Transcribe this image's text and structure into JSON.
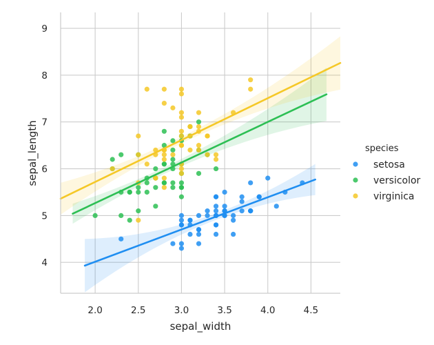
{
  "chart_data": {
    "type": "scatter",
    "xlabel": "sepal_width",
    "ylabel": "sepal_length",
    "xlim": [
      1.6,
      4.84
    ],
    "ylim": [
      3.34,
      9.34
    ],
    "xticks": [
      2.0,
      2.5,
      3.0,
      3.5,
      4.0,
      4.5
    ],
    "xtick_labels": [
      "2.0",
      "2.5",
      "3.0",
      "3.5",
      "4.0",
      "4.5"
    ],
    "yticks": [
      4,
      5,
      6,
      7,
      8,
      9
    ],
    "ytick_labels": [
      "4",
      "5",
      "6",
      "7",
      "8",
      "9"
    ],
    "grid": true,
    "legend": {
      "title": "species",
      "placement": "right"
    },
    "series": [
      {
        "name": "setosa",
        "color": "#1f8ef1",
        "points": [
          [
            3.5,
            5.1
          ],
          [
            3.0,
            4.9
          ],
          [
            3.2,
            4.7
          ],
          [
            3.1,
            4.6
          ],
          [
            3.6,
            5.0
          ],
          [
            3.9,
            5.4
          ],
          [
            3.4,
            4.6
          ],
          [
            3.4,
            5.0
          ],
          [
            2.9,
            4.4
          ],
          [
            3.1,
            4.9
          ],
          [
            3.7,
            5.4
          ],
          [
            3.4,
            4.8
          ],
          [
            3.0,
            4.8
          ],
          [
            3.0,
            4.3
          ],
          [
            4.0,
            5.8
          ],
          [
            4.4,
            5.7
          ],
          [
            3.9,
            5.4
          ],
          [
            3.5,
            5.1
          ],
          [
            3.8,
            5.7
          ],
          [
            3.8,
            5.1
          ],
          [
            3.4,
            5.4
          ],
          [
            3.7,
            5.1
          ],
          [
            3.6,
            4.6
          ],
          [
            3.3,
            5.1
          ],
          [
            3.4,
            4.8
          ],
          [
            3.0,
            5.0
          ],
          [
            3.4,
            5.0
          ],
          [
            3.5,
            5.2
          ],
          [
            3.4,
            5.2
          ],
          [
            3.2,
            4.7
          ],
          [
            3.1,
            4.8
          ],
          [
            3.4,
            5.4
          ],
          [
            4.1,
            5.2
          ],
          [
            4.2,
            5.5
          ],
          [
            3.1,
            4.9
          ],
          [
            3.2,
            5.0
          ],
          [
            3.5,
            5.5
          ],
          [
            3.6,
            4.9
          ],
          [
            3.0,
            4.4
          ],
          [
            3.4,
            5.1
          ],
          [
            3.5,
            5.0
          ],
          [
            2.3,
            4.5
          ],
          [
            3.2,
            4.4
          ],
          [
            3.5,
            5.0
          ],
          [
            3.8,
            5.1
          ],
          [
            3.0,
            4.8
          ],
          [
            3.8,
            5.1
          ],
          [
            3.2,
            4.6
          ],
          [
            3.7,
            5.3
          ],
          [
            3.3,
            5.0
          ]
        ],
        "fit": {
          "x": [
            1.88,
            4.55
          ],
          "y": [
            3.93,
            5.77
          ]
        }
      },
      {
        "name": "versicolor",
        "color": "#2dbf54",
        "points": [
          [
            3.2,
            7.0
          ],
          [
            3.2,
            6.4
          ],
          [
            3.1,
            6.9
          ],
          [
            2.3,
            5.5
          ],
          [
            2.8,
            6.5
          ],
          [
            2.8,
            5.7
          ],
          [
            3.3,
            6.3
          ],
          [
            2.4,
            4.9
          ],
          [
            2.9,
            6.6
          ],
          [
            2.7,
            5.2
          ],
          [
            2.0,
            5.0
          ],
          [
            3.0,
            5.9
          ],
          [
            2.2,
            6.0
          ],
          [
            2.9,
            6.1
          ],
          [
            2.9,
            5.6
          ],
          [
            3.1,
            6.7
          ],
          [
            3.0,
            5.6
          ],
          [
            2.7,
            5.8
          ],
          [
            2.2,
            6.2
          ],
          [
            2.5,
            5.6
          ],
          [
            3.2,
            5.9
          ],
          [
            2.8,
            6.1
          ],
          [
            2.5,
            6.3
          ],
          [
            2.8,
            6.1
          ],
          [
            2.9,
            6.4
          ],
          [
            3.0,
            6.6
          ],
          [
            2.8,
            6.8
          ],
          [
            3.0,
            6.7
          ],
          [
            2.9,
            6.0
          ],
          [
            2.6,
            5.7
          ],
          [
            2.4,
            5.5
          ],
          [
            2.4,
            5.5
          ],
          [
            2.7,
            5.8
          ],
          [
            2.7,
            6.0
          ],
          [
            3.0,
            5.4
          ],
          [
            3.4,
            6.0
          ],
          [
            3.1,
            6.7
          ],
          [
            2.3,
            6.3
          ],
          [
            3.0,
            5.6
          ],
          [
            2.5,
            5.5
          ],
          [
            2.6,
            5.5
          ],
          [
            3.0,
            6.1
          ],
          [
            2.6,
            5.8
          ],
          [
            2.3,
            5.0
          ],
          [
            2.7,
            5.6
          ],
          [
            3.0,
            5.7
          ],
          [
            2.9,
            5.7
          ],
          [
            2.9,
            6.2
          ],
          [
            2.5,
            5.1
          ],
          [
            2.8,
            5.7
          ]
        ],
        "fit": {
          "x": [
            1.74,
            4.68
          ],
          "y": [
            5.04,
            7.59
          ]
        }
      },
      {
        "name": "virginica",
        "color": "#f5c827",
        "points": [
          [
            3.3,
            6.3
          ],
          [
            2.7,
            5.8
          ],
          [
            3.0,
            7.1
          ],
          [
            2.9,
            6.3
          ],
          [
            3.0,
            6.5
          ],
          [
            3.0,
            7.6
          ],
          [
            2.5,
            4.9
          ],
          [
            2.9,
            7.3
          ],
          [
            2.5,
            6.7
          ],
          [
            3.6,
            7.2
          ],
          [
            3.2,
            6.5
          ],
          [
            2.7,
            6.4
          ],
          [
            3.0,
            6.8
          ],
          [
            2.5,
            5.7
          ],
          [
            2.8,
            5.8
          ],
          [
            3.2,
            6.4
          ],
          [
            3.0,
            6.5
          ],
          [
            3.8,
            7.7
          ],
          [
            2.6,
            7.7
          ],
          [
            2.2,
            6.0
          ],
          [
            3.2,
            6.9
          ],
          [
            2.8,
            5.6
          ],
          [
            2.8,
            7.7
          ],
          [
            2.7,
            6.3
          ],
          [
            3.3,
            6.7
          ],
          [
            3.2,
            7.2
          ],
          [
            2.8,
            6.2
          ],
          [
            3.0,
            6.1
          ],
          [
            2.8,
            6.4
          ],
          [
            3.0,
            7.2
          ],
          [
            2.8,
            7.4
          ],
          [
            3.8,
            7.9
          ],
          [
            2.8,
            6.4
          ],
          [
            2.8,
            6.3
          ],
          [
            2.6,
            6.1
          ],
          [
            3.0,
            7.7
          ],
          [
            3.4,
            6.3
          ],
          [
            3.1,
            6.4
          ],
          [
            3.0,
            6.0
          ],
          [
            3.1,
            6.9
          ],
          [
            3.1,
            6.7
          ],
          [
            3.1,
            6.9
          ],
          [
            2.7,
            5.8
          ],
          [
            3.2,
            6.8
          ],
          [
            3.3,
            6.7
          ],
          [
            3.0,
            6.7
          ],
          [
            2.5,
            6.3
          ],
          [
            3.0,
            6.5
          ],
          [
            3.4,
            6.2
          ],
          [
            3.0,
            5.9
          ]
        ],
        "fit": {
          "x": [
            1.6,
            4.84
          ],
          "y": [
            5.36,
            8.26
          ]
        }
      }
    ]
  }
}
